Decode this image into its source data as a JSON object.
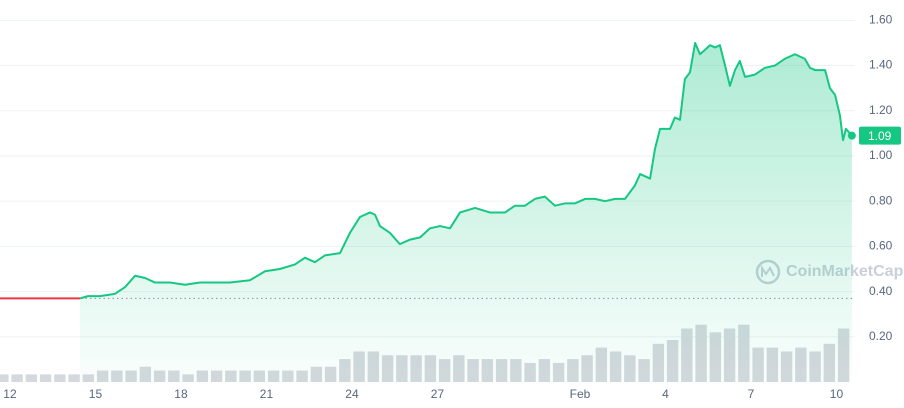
{
  "chart_data": {
    "type": "line",
    "watermark": "CoinMarketCap",
    "xlim": [
      11.65,
      41.65
    ],
    "xticks": [
      12,
      15,
      18,
      21,
      24,
      27,
      {
        "value": 32,
        "label": "Feb"
      },
      {
        "value": 35,
        "label": "4"
      },
      {
        "value": 38,
        "label": "7"
      },
      {
        "value": 41,
        "label": "10"
      }
    ],
    "ylim": [
      0,
      1.69
    ],
    "yticks": [
      {
        "value": 0.2,
        "label": "0.20"
      },
      {
        "value": 0.4,
        "label": "0.40"
      },
      {
        "value": 0.6,
        "label": "0.60"
      },
      {
        "value": 0.8,
        "label": "0.80"
      },
      {
        "value": 1.0,
        "label": "1.00"
      },
      {
        "value": 1.2,
        "label": "1.20"
      },
      {
        "value": 1.4,
        "label": "1.40"
      },
      {
        "value": 1.6,
        "label": "1.60"
      }
    ],
    "grid": true,
    "reference_line": 0.37,
    "last_price": 1.09,
    "series": [
      {
        "color": "#ea3943",
        "x": [
          11.65,
          14.46
        ],
        "values": [
          0.37,
          0.37
        ]
      },
      {
        "color": "#16c784",
        "fill": true,
        "x": [
          14.46,
          14.74,
          15.16,
          15.68,
          16.04,
          16.39,
          16.74,
          17.09,
          17.61,
          18.14,
          18.67,
          19.19,
          19.72,
          20.42,
          20.95,
          21.47,
          22.0,
          22.35,
          22.7,
          23.05,
          23.58,
          23.93,
          24.28,
          24.63,
          24.81,
          24.98,
          25.33,
          25.68,
          26.04,
          26.39,
          26.74,
          27.09,
          27.44,
          27.79,
          28.32,
          28.84,
          29.37,
          29.72,
          30.07,
          30.42,
          30.77,
          31.12,
          31.47,
          31.82,
          32.18,
          32.53,
          32.88,
          33.23,
          33.58,
          33.93,
          34.11,
          34.46,
          34.63,
          34.81,
          35.16,
          35.33,
          35.51,
          35.68,
          35.86,
          36.04,
          36.21,
          36.39,
          36.56,
          36.74,
          36.91,
          37.09,
          37.26,
          37.44,
          37.61,
          37.79,
          38.14,
          38.49,
          38.84,
          39.19,
          39.54,
          39.89,
          40.07,
          40.25,
          40.6,
          40.77,
          40.95,
          41.12,
          41.23,
          41.33,
          41.54
        ],
        "values": [
          0.37,
          0.38,
          0.38,
          0.39,
          0.42,
          0.47,
          0.46,
          0.44,
          0.44,
          0.43,
          0.44,
          0.44,
          0.44,
          0.45,
          0.49,
          0.5,
          0.52,
          0.55,
          0.53,
          0.56,
          0.57,
          0.66,
          0.73,
          0.75,
          0.74,
          0.69,
          0.66,
          0.61,
          0.63,
          0.64,
          0.68,
          0.69,
          0.68,
          0.75,
          0.77,
          0.75,
          0.75,
          0.78,
          0.78,
          0.81,
          0.82,
          0.78,
          0.79,
          0.79,
          0.81,
          0.81,
          0.8,
          0.81,
          0.81,
          0.87,
          0.92,
          0.9,
          1.03,
          1.12,
          1.12,
          1.17,
          1.16,
          1.34,
          1.37,
          1.5,
          1.45,
          1.47,
          1.49,
          1.48,
          1.49,
          1.4,
          1.31,
          1.38,
          1.42,
          1.35,
          1.36,
          1.39,
          1.4,
          1.43,
          1.45,
          1.43,
          1.39,
          1.38,
          1.38,
          1.3,
          1.27,
          1.18,
          1.07,
          1.12,
          1.09
        ]
      }
    ],
    "volume": {
      "color": "#d5d8de",
      "ylim": [
        0,
        100
      ],
      "x": [
        11.75,
        12.25,
        12.75,
        13.25,
        13.75,
        14.25,
        14.75,
        15.25,
        15.75,
        16.25,
        16.75,
        17.25,
        17.75,
        18.25,
        18.75,
        19.25,
        19.75,
        20.25,
        20.75,
        21.25,
        21.75,
        22.25,
        22.75,
        23.25,
        23.75,
        24.25,
        24.75,
        25.25,
        25.75,
        26.25,
        26.75,
        27.25,
        27.75,
        28.25,
        28.75,
        29.25,
        29.75,
        30.25,
        30.75,
        31.25,
        31.75,
        32.25,
        32.75,
        33.25,
        33.75,
        34.25,
        34.75,
        35.25,
        35.75,
        36.25,
        36.75,
        37.25,
        37.75,
        38.25,
        38.75,
        39.25,
        39.75,
        40.25,
        40.75,
        41.25
      ],
      "values": [
        2,
        2,
        2,
        2,
        2,
        2,
        2,
        3,
        3,
        3,
        4,
        3,
        3,
        2,
        3,
        3,
        3,
        3,
        3,
        3,
        3,
        3,
        4,
        4,
        6,
        8,
        8,
        7,
        7,
        7,
        7,
        6,
        7,
        6,
        6,
        6,
        6,
        5,
        6,
        5,
        6,
        7,
        9,
        8,
        7,
        6,
        10,
        11,
        14,
        15,
        13,
        14,
        15,
        9,
        9,
        8,
        9,
        8,
        10,
        14
      ]
    }
  }
}
